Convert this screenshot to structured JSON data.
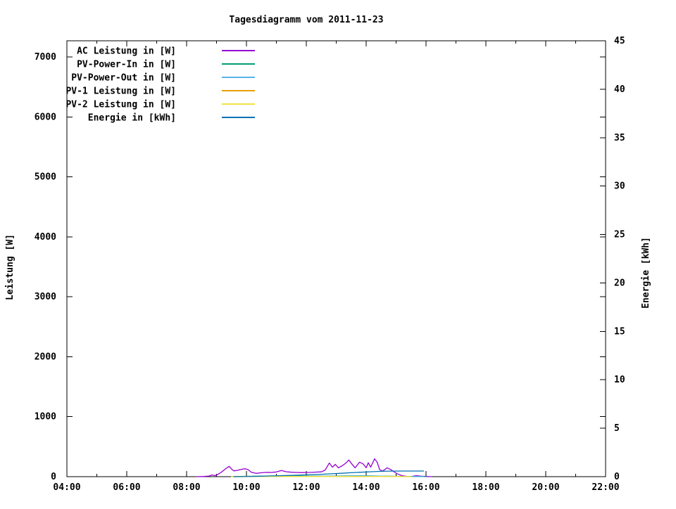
{
  "title": "Tagesdiagramm vom 2011-11-23",
  "chart_data": {
    "type": "line",
    "title": "Tagesdiagramm vom 2011-11-23",
    "grid": false,
    "legend_position": "top-left-inside",
    "x": {
      "unit": "time of day",
      "range": [
        4,
        22
      ],
      "major_hours": [
        4,
        6,
        8,
        10,
        12,
        14,
        16,
        18,
        20,
        22
      ],
      "tick_labels": [
        "04:00",
        "06:00",
        "08:00",
        "10:00",
        "12:00",
        "14:00",
        "16:00",
        "18:00",
        "20:00",
        "22:00"
      ],
      "minor_hours": [
        5,
        7,
        9,
        11,
        13,
        15,
        17,
        19,
        21
      ]
    },
    "y_left": {
      "label": "Leistung [W]",
      "range": [
        0,
        7270
      ],
      "tick_values": [
        0,
        1000,
        2000,
        3000,
        4000,
        5000,
        6000,
        7000
      ],
      "tick_labels": [
        "0",
        "1000",
        "2000",
        "3000",
        "4000",
        "5000",
        "6000",
        "7000"
      ]
    },
    "y_right": {
      "label": "Energie [kWh]",
      "range": [
        0,
        45
      ],
      "tick_values": [
        0,
        5,
        10,
        15,
        20,
        25,
        30,
        35,
        40,
        45
      ],
      "tick_labels": [
        "0",
        "5",
        "10",
        "15",
        "20",
        "25",
        "30",
        "35",
        "40",
        "45"
      ]
    },
    "series": [
      {
        "name": "AC Leistung in [W]",
        "color": "#9400d3",
        "axis": "left",
        "points": [
          [
            8.33,
            0
          ],
          [
            8.58,
            3
          ],
          [
            8.75,
            10
          ],
          [
            8.85,
            28
          ],
          [
            8.95,
            18
          ],
          [
            9.05,
            40
          ],
          [
            9.15,
            70
          ],
          [
            9.3,
            130
          ],
          [
            9.42,
            172
          ],
          [
            9.5,
            128
          ],
          [
            9.58,
            96
          ],
          [
            9.7,
            105
          ],
          [
            9.83,
            122
          ],
          [
            9.95,
            132
          ],
          [
            10.05,
            118
          ],
          [
            10.17,
            72
          ],
          [
            10.33,
            55
          ],
          [
            10.5,
            66
          ],
          [
            10.67,
            72
          ],
          [
            10.83,
            70
          ],
          [
            11.0,
            78
          ],
          [
            11.17,
            102
          ],
          [
            11.33,
            82
          ],
          [
            11.5,
            74
          ],
          [
            11.67,
            70
          ],
          [
            11.83,
            68
          ],
          [
            12.0,
            70
          ],
          [
            12.17,
            72
          ],
          [
            12.33,
            76
          ],
          [
            12.5,
            80
          ],
          [
            12.63,
            110
          ],
          [
            12.77,
            228
          ],
          [
            12.87,
            158
          ],
          [
            12.97,
            205
          ],
          [
            13.07,
            148
          ],
          [
            13.2,
            182
          ],
          [
            13.33,
            230
          ],
          [
            13.42,
            278
          ],
          [
            13.52,
            212
          ],
          [
            13.63,
            148
          ],
          [
            13.78,
            242
          ],
          [
            13.9,
            212
          ],
          [
            14.0,
            148
          ],
          [
            14.07,
            232
          ],
          [
            14.15,
            158
          ],
          [
            14.28,
            298
          ],
          [
            14.37,
            240
          ],
          [
            14.45,
            118
          ],
          [
            14.55,
            92
          ],
          [
            14.7,
            148
          ],
          [
            14.82,
            118
          ],
          [
            14.93,
            82
          ],
          [
            15.05,
            44
          ],
          [
            15.2,
            16
          ],
          [
            15.35,
            6
          ],
          [
            15.5,
            2
          ],
          [
            15.67,
            16
          ],
          [
            15.83,
            8
          ],
          [
            16.0,
            4
          ],
          [
            16.17,
            0
          ]
        ]
      },
      {
        "name": "PV-Power-In in [W]",
        "color": "#009e73",
        "axis": "left",
        "points": [
          [
            9.5,
            1
          ],
          [
            10.0,
            6
          ],
          [
            10.5,
            8
          ],
          [
            11.0,
            9
          ],
          [
            11.5,
            9
          ],
          [
            12.0,
            9
          ],
          [
            12.5,
            10
          ],
          [
            13.0,
            12
          ],
          [
            13.5,
            14
          ],
          [
            14.0,
            14
          ],
          [
            14.5,
            11
          ],
          [
            15.0,
            6
          ],
          [
            15.5,
            2
          ],
          [
            16.0,
            1
          ]
        ]
      },
      {
        "name": "PV-Power-Out in [W]",
        "color": "#56b4e9",
        "axis": "left",
        "points": [
          [
            9.58,
            0
          ],
          [
            10.0,
            4
          ],
          [
            10.5,
            6
          ],
          [
            11.0,
            7
          ],
          [
            11.5,
            7
          ],
          [
            12.0,
            7
          ],
          [
            12.5,
            8
          ],
          [
            13.0,
            10
          ],
          [
            13.5,
            12
          ],
          [
            14.0,
            12
          ],
          [
            14.5,
            9
          ],
          [
            15.0,
            4
          ],
          [
            15.5,
            1
          ],
          [
            15.92,
            0
          ]
        ]
      },
      {
        "name": "PV-1 Leistung in [W]",
        "color": "#e69f00",
        "axis": "left",
        "points": [
          [
            9.5,
            0
          ],
          [
            10.5,
            2
          ],
          [
            11.5,
            3
          ],
          [
            12.5,
            3
          ],
          [
            13.5,
            4
          ],
          [
            14.5,
            3
          ],
          [
            15.5,
            0
          ]
        ]
      },
      {
        "name": "PV-2 Leistung in [W]",
        "color": "#f0e442",
        "axis": "left",
        "points": [
          [
            9.5,
            0
          ],
          [
            10.5,
            1
          ],
          [
            11.5,
            2
          ],
          [
            12.5,
            2
          ],
          [
            13.5,
            3
          ],
          [
            14.5,
            2
          ],
          [
            15.5,
            0
          ]
        ]
      },
      {
        "name": "Energie in [kWh]",
        "color": "#0072b2",
        "axis": "right",
        "points": [
          [
            9.58,
            0
          ],
          [
            9.83,
            0.01
          ],
          [
            10.17,
            0.03
          ],
          [
            10.5,
            0.05
          ],
          [
            10.83,
            0.08
          ],
          [
            11.17,
            0.11
          ],
          [
            11.5,
            0.14
          ],
          [
            11.83,
            0.17
          ],
          [
            12.17,
            0.21
          ],
          [
            12.5,
            0.25
          ],
          [
            12.83,
            0.3
          ],
          [
            13.17,
            0.35
          ],
          [
            13.5,
            0.41
          ],
          [
            13.83,
            0.46
          ],
          [
            14.17,
            0.51
          ],
          [
            14.5,
            0.55
          ],
          [
            14.83,
            0.57
          ],
          [
            15.17,
            0.58
          ],
          [
            15.92,
            0.58
          ]
        ]
      }
    ]
  }
}
